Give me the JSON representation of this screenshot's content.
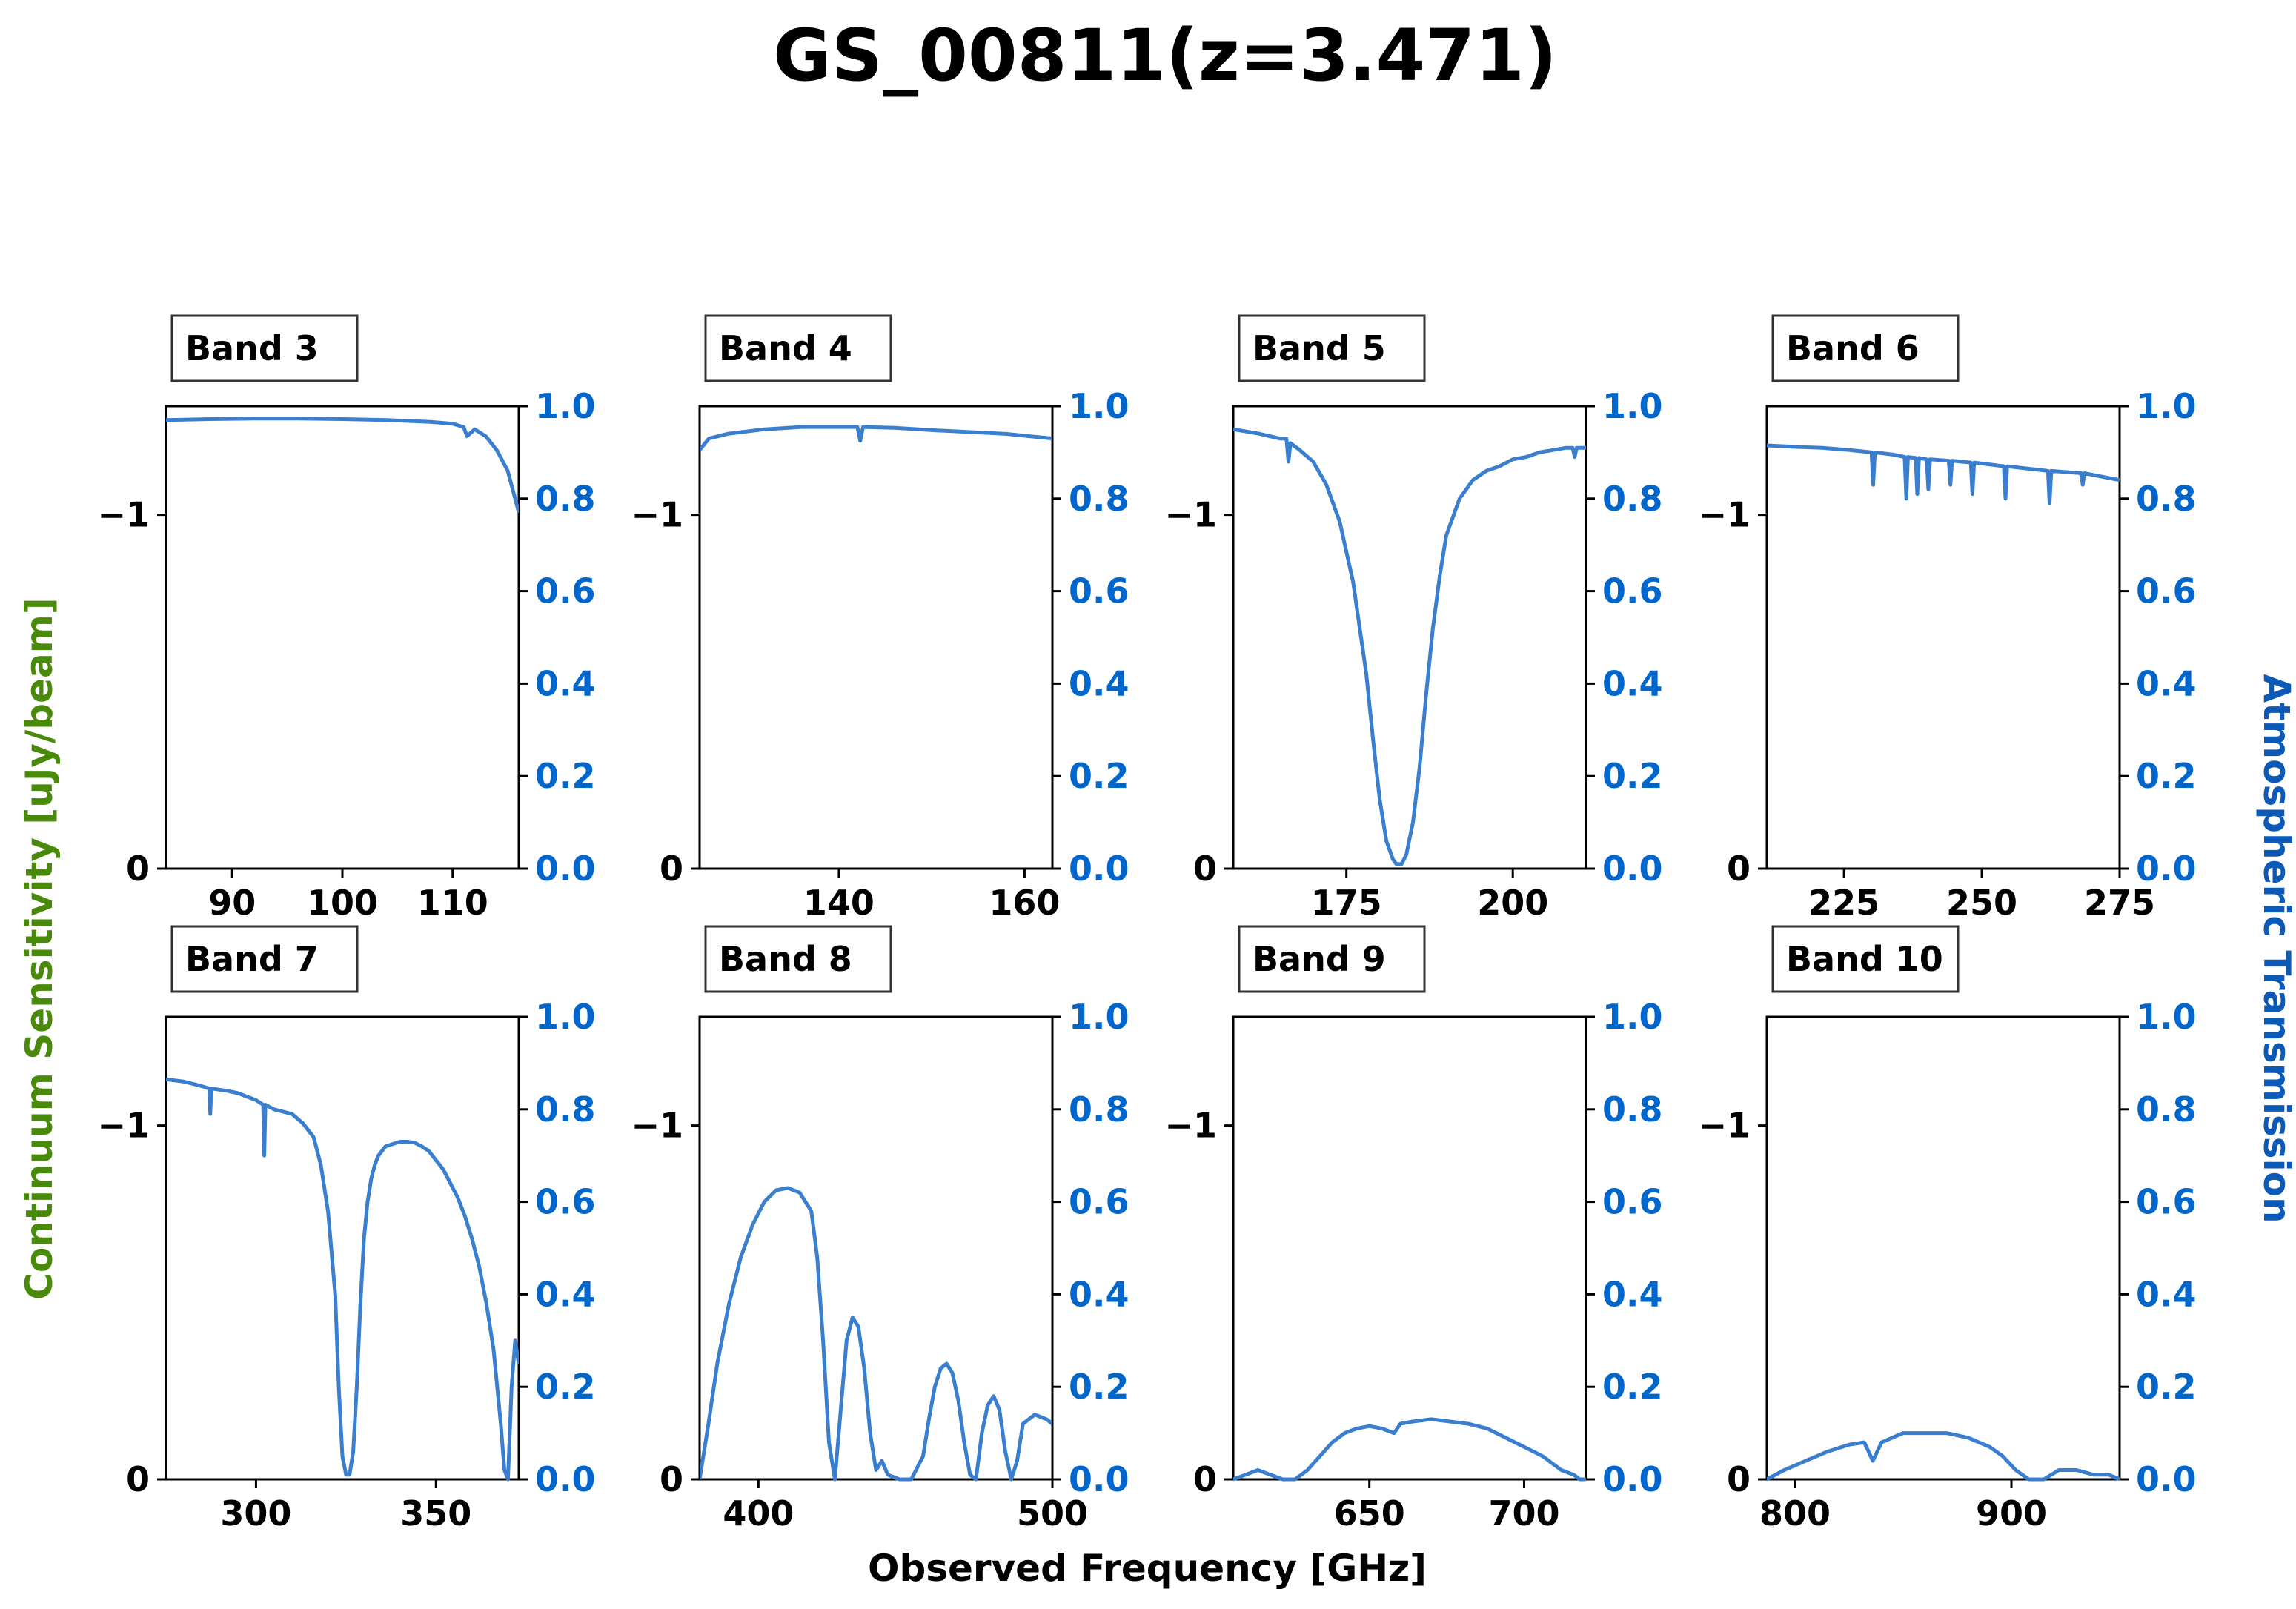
{
  "figure": {
    "title": "GS_00811(z=3.471)",
    "xlabel": "Observed Frequency [GHz]",
    "ylabel_left": "Continuum Sensitivity [uJy/beam]",
    "ylabel_right": "Atmospheric Transmission"
  },
  "colors": {
    "curve": "#3a7fcf",
    "right_axis": "#0066cc",
    "left_label": "#4a8a0a"
  },
  "chart_data": [
    {
      "type": "line",
      "band": "Band 3",
      "xlim": [
        84,
        116
      ],
      "ylim_left_ticks": [
        "−1",
        "0"
      ],
      "ylim_right": [
        0,
        1
      ],
      "xticks": [
        90,
        100,
        110
      ],
      "series": [
        {
          "x": [
            84,
            88,
            92,
            96,
            100,
            104,
            106,
            108,
            110,
            111,
            111.3,
            112,
            113,
            114,
            115,
            116
          ],
          "y": [
            0.97,
            0.972,
            0.973,
            0.973,
            0.972,
            0.97,
            0.968,
            0.966,
            0.962,
            0.955,
            0.935,
            0.95,
            0.935,
            0.905,
            0.86,
            0.77
          ]
        }
      ]
    },
    {
      "type": "line",
      "band": "Band 4",
      "xlim": [
        125,
        163
      ],
      "ylim_left_ticks": [
        "−1",
        "0"
      ],
      "ylim_right": [
        0,
        1
      ],
      "xticks": [
        140,
        160
      ],
      "series": [
        {
          "x": [
            125,
            126,
            128,
            132,
            136,
            140,
            142,
            142.3,
            142.6,
            146,
            150,
            154,
            158,
            163
          ],
          "y": [
            0.905,
            0.93,
            0.94,
            0.95,
            0.955,
            0.955,
            0.955,
            0.925,
            0.955,
            0.953,
            0.948,
            0.944,
            0.94,
            0.93
          ]
        }
      ]
    },
    {
      "type": "line",
      "band": "Band 5",
      "xlim": [
        158,
        211
      ],
      "ylim_left_ticks": [
        "−1",
        "0"
      ],
      "ylim_right": [
        0,
        1
      ],
      "xticks": [
        175,
        200
      ],
      "series": [
        {
          "x": [
            158,
            162,
            165,
            166,
            166.3,
            166.6,
            168,
            170,
            172,
            174,
            176,
            178,
            179,
            180,
            181,
            182,
            182.5,
            183.3,
            184,
            185,
            186,
            187,
            188,
            189,
            190,
            192,
            194,
            196,
            198,
            200,
            202,
            204,
            206,
            208,
            209,
            209.3,
            209.6,
            211
          ],
          "y": [
            0.95,
            0.94,
            0.93,
            0.93,
            0.88,
            0.92,
            0.905,
            0.88,
            0.83,
            0.75,
            0.62,
            0.42,
            0.28,
            0.15,
            0.06,
            0.02,
            0.01,
            0.01,
            0.03,
            0.1,
            0.22,
            0.38,
            0.52,
            0.63,
            0.72,
            0.8,
            0.84,
            0.86,
            0.87,
            0.885,
            0.89,
            0.9,
            0.905,
            0.91,
            0.91,
            0.89,
            0.91,
            0.91
          ]
        }
      ]
    },
    {
      "type": "line",
      "band": "Band 6",
      "xlim": [
        211,
        275
      ],
      "ylim_left_ticks": [
        "−1",
        "0"
      ],
      "ylim_right": [
        0,
        1
      ],
      "xticks": [
        225,
        250,
        275
      ],
      "series": [
        {
          "x": [
            211,
            216,
            221,
            226,
            230,
            230.3,
            230.6,
            234,
            236,
            236.3,
            236.6,
            238,
            238.3,
            238.6,
            240,
            240.3,
            240.6,
            244,
            244.3,
            244.6,
            248,
            248.3,
            248.6,
            254,
            254.3,
            254.6,
            262,
            262.3,
            262.6,
            268,
            268.3,
            268.6,
            275
          ],
          "y": [
            0.915,
            0.912,
            0.91,
            0.905,
            0.9,
            0.83,
            0.9,
            0.895,
            0.89,
            0.8,
            0.89,
            0.888,
            0.81,
            0.888,
            0.885,
            0.82,
            0.885,
            0.882,
            0.83,
            0.882,
            0.878,
            0.81,
            0.878,
            0.87,
            0.8,
            0.87,
            0.86,
            0.79,
            0.86,
            0.855,
            0.83,
            0.855,
            0.84
          ]
        }
      ]
    },
    {
      "type": "line",
      "band": "Band 7",
      "xlim": [
        275,
        373
      ],
      "ylim_left_ticks": [
        "−1",
        "0"
      ],
      "ylim_right": [
        0,
        1
      ],
      "xticks": [
        300,
        350
      ],
      "series": [
        {
          "x": [
            275,
            280,
            285,
            287,
            287.3,
            287.6,
            292,
            295,
            300,
            302,
            302.3,
            302.6,
            305,
            310,
            313,
            316,
            318,
            320,
            322,
            323,
            324,
            325,
            326,
            327,
            328,
            329,
            330,
            331,
            332,
            333,
            334,
            336,
            338,
            340,
            342,
            344,
            346,
            348,
            350,
            352,
            354,
            356,
            358,
            360,
            362,
            364,
            366,
            368,
            369,
            370,
            371,
            372,
            373
          ],
          "y": [
            0.865,
            0.86,
            0.85,
            0.845,
            0.79,
            0.845,
            0.84,
            0.835,
            0.82,
            0.81,
            0.7,
            0.81,
            0.8,
            0.79,
            0.77,
            0.74,
            0.68,
            0.58,
            0.4,
            0.2,
            0.05,
            0.01,
            0.01,
            0.06,
            0.2,
            0.38,
            0.52,
            0.6,
            0.65,
            0.68,
            0.7,
            0.72,
            0.725,
            0.73,
            0.73,
            0.728,
            0.72,
            0.71,
            0.69,
            0.67,
            0.64,
            0.61,
            0.57,
            0.52,
            0.46,
            0.38,
            0.28,
            0.12,
            0.02,
            0.0,
            0.2,
            0.3,
            0.25
          ]
        }
      ]
    },
    {
      "type": "line",
      "band": "Band 8",
      "xlim": [
        380,
        500
      ],
      "ylim_left_ticks": [
        "−1",
        "0"
      ],
      "ylim_right": [
        0,
        1
      ],
      "xticks": [
        400,
        500
      ],
      "series": [
        {
          "x": [
            380,
            383,
            386,
            390,
            394,
            398,
            402,
            406,
            410,
            414,
            418,
            420,
            422,
            424,
            426,
            428,
            430,
            432,
            434,
            436,
            438,
            440,
            442,
            444,
            448,
            452,
            456,
            458,
            460,
            462,
            464,
            466,
            468,
            470,
            472,
            474,
            476,
            478,
            480,
            482,
            484,
            486,
            488,
            490,
            494,
            498,
            500
          ],
          "y": [
            0.0,
            0.12,
            0.25,
            0.38,
            0.48,
            0.55,
            0.6,
            0.625,
            0.63,
            0.62,
            0.58,
            0.48,
            0.3,
            0.08,
            0.0,
            0.15,
            0.3,
            0.35,
            0.33,
            0.24,
            0.1,
            0.02,
            0.04,
            0.01,
            0.0,
            0.0,
            0.05,
            0.13,
            0.2,
            0.24,
            0.25,
            0.23,
            0.17,
            0.08,
            0.01,
            0.0,
            0.1,
            0.16,
            0.18,
            0.15,
            0.06,
            0.0,
            0.04,
            0.12,
            0.14,
            0.13,
            0.12
          ]
        }
      ]
    },
    {
      "type": "line",
      "band": "Band 9",
      "xlim": [
        606,
        720
      ],
      "ylim_left_ticks": [
        "−1",
        "0"
      ],
      "ylim_right": [
        0,
        1
      ],
      "xticks": [
        650,
        700
      ],
      "series": [
        {
          "x": [
            606,
            610,
            614,
            618,
            622,
            626,
            630,
            634,
            638,
            642,
            646,
            650,
            654,
            658,
            660,
            664,
            670,
            676,
            682,
            688,
            694,
            700,
            706,
            712,
            716,
            718,
            720
          ],
          "y": [
            0.0,
            0.01,
            0.02,
            0.01,
            0.0,
            0.0,
            0.02,
            0.05,
            0.08,
            0.1,
            0.11,
            0.115,
            0.11,
            0.1,
            0.12,
            0.125,
            0.13,
            0.125,
            0.12,
            0.11,
            0.09,
            0.07,
            0.05,
            0.02,
            0.01,
            0.0,
            0.0
          ]
        }
      ]
    },
    {
      "type": "line",
      "band": "Band 10",
      "xlim": [
        787,
        950
      ],
      "ylim_left_ticks": [
        "−1",
        "0"
      ],
      "ylim_right": [
        0,
        1
      ],
      "xticks": [
        800,
        900
      ],
      "series": [
        {
          "x": [
            787,
            795,
            805,
            815,
            825,
            832,
            836,
            840,
            845,
            850,
            860,
            870,
            880,
            890,
            896,
            902,
            908,
            915,
            922,
            930,
            938,
            945,
            950
          ],
          "y": [
            0.0,
            0.02,
            0.04,
            0.06,
            0.075,
            0.08,
            0.04,
            0.08,
            0.09,
            0.1,
            0.1,
            0.1,
            0.09,
            0.07,
            0.05,
            0.02,
            0.0,
            0.0,
            0.02,
            0.02,
            0.01,
            0.01,
            0.0
          ]
        }
      ]
    }
  ]
}
